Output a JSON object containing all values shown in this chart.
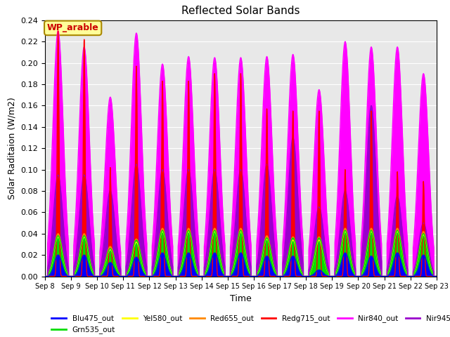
{
  "title": "Reflected Solar Bands",
  "xlabel": "Time",
  "ylabel": "Solar Raditaion (W/m2)",
  "ylim": [
    0,
    0.24
  ],
  "yticks": [
    0.0,
    0.02,
    0.04,
    0.06,
    0.08,
    0.1,
    0.12,
    0.14,
    0.16,
    0.18,
    0.2,
    0.22,
    0.24
  ],
  "bg_color": "#e8e8e8",
  "annotation_text": "WP_arable",
  "annotation_color": "#cc0000",
  "annotation_bg": "#ffff99",
  "annotation_border": "#aa8800",
  "series_colors": {
    "Blu475_out": "#0000ff",
    "Grn535_out": "#00dd00",
    "Yel580_out": "#ffff00",
    "Red655_out": "#ff8800",
    "Redg715_out": "#ff0000",
    "Nir840_out": "#ff00ff",
    "Nir945_out": "#9900cc"
  },
  "days": 15,
  "day_start": 8,
  "peaks_nir840": [
    0.23,
    0.215,
    0.168,
    0.228,
    0.199,
    0.206,
    0.205,
    0.205,
    0.206,
    0.208,
    0.175,
    0.22,
    0.215,
    0.215,
    0.19
  ],
  "peaks_nir945": [
    0.095,
    0.095,
    0.08,
    0.105,
    0.1,
    0.1,
    0.1,
    0.1,
    0.105,
    0.13,
    0.065,
    0.08,
    0.16,
    0.075,
    0.05
  ],
  "peaks_redg715": [
    0.23,
    0.222,
    0.102,
    0.197,
    0.183,
    0.183,
    0.19,
    0.19,
    0.157,
    0.155,
    0.155,
    0.1,
    0.155,
    0.098,
    0.089
  ],
  "peaks_red655": [
    0.04,
    0.04,
    0.028,
    0.035,
    0.045,
    0.045,
    0.045,
    0.045,
    0.038,
    0.037,
    0.037,
    0.045,
    0.045,
    0.045,
    0.042
  ],
  "peaks_yel580": [
    0.037,
    0.037,
    0.025,
    0.032,
    0.042,
    0.042,
    0.042,
    0.042,
    0.035,
    0.034,
    0.034,
    0.042,
    0.042,
    0.042,
    0.039
  ],
  "peaks_grn535": [
    0.038,
    0.038,
    0.026,
    0.034,
    0.043,
    0.043,
    0.043,
    0.043,
    0.036,
    0.036,
    0.036,
    0.043,
    0.043,
    0.043,
    0.04
  ],
  "peaks_blu475": [
    0.02,
    0.02,
    0.013,
    0.018,
    0.022,
    0.022,
    0.022,
    0.022,
    0.019,
    0.019,
    0.006,
    0.022,
    0.019,
    0.022,
    0.02
  ],
  "grid_color": "#ffffff",
  "linewidth": 1.0
}
